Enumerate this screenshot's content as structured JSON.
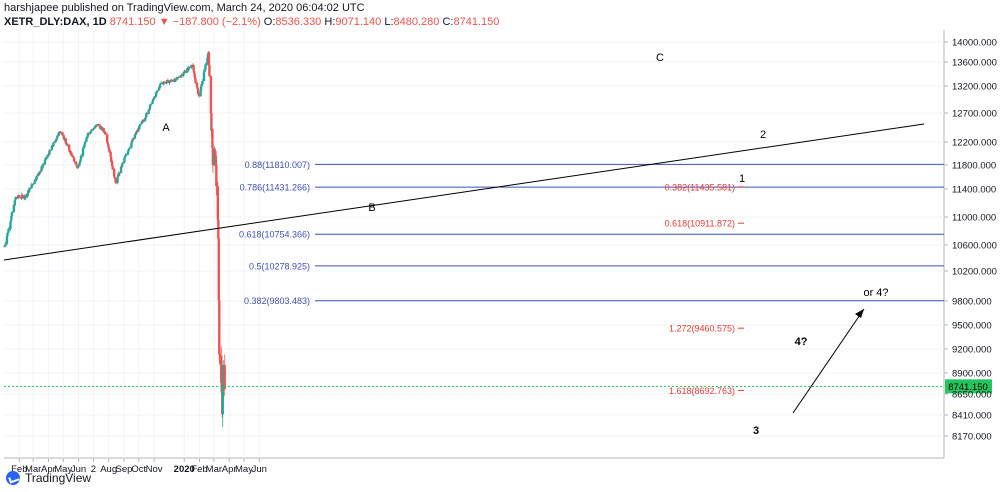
{
  "header": {
    "publisher": "harshjapee published on TradingView.com, March 24, 2020 06:04:02 UTC",
    "symbol": "XETR_DLY:DAX, 1D",
    "last": "8741.150",
    "change": "▼ −187.800 (−2.1%)",
    "open_label": "O:",
    "open": "8536.330",
    "high_label": "H:",
    "high": "9071.140",
    "low_label": "L:",
    "low": "8480.280",
    "close_label": "C:",
    "close": "8741.150"
  },
  "footer": {
    "brand": "TradingView"
  },
  "colors": {
    "up": "#26a69a",
    "down": "#ef5350",
    "fib_left": "#3f51b5",
    "fib_right": "#e53935",
    "trend": "#000000",
    "price_tag": "#22c55e"
  },
  "chart_data": {
    "type": "candlestick",
    "x_ticks": [
      "Feb",
      "Mar",
      "Apr",
      "May",
      "Jun",
      "2",
      "Aug",
      "Sep",
      "Oct",
      "Nov",
      "2020",
      "Feb",
      "Mar",
      "Apr",
      "May",
      "Jun"
    ],
    "y_ticks": [
      14000,
      13600,
      13200,
      12700,
      12200,
      11800,
      11400,
      11000,
      10600,
      10200,
      9800,
      9500,
      9200,
      8900,
      8650,
      8410,
      8170
    ],
    "y_tick_labels": [
      "14000.000",
      "13600.000",
      "13200.000",
      "12700.000",
      "12200.000",
      "11800.000",
      "11400.000",
      "11000.000",
      "10600.000",
      "10200.000",
      "9800.000",
      "9500.000",
      "9200.000",
      "8900.000",
      "8650.000",
      "8410.000",
      "8170.000"
    ],
    "ylim": [
      8000,
      14200
    ],
    "last_price": 8741.15,
    "last_price_label": "8741.150",
    "fib_left": [
      {
        "label": "0.88(11810.007)",
        "value": 11810.007
      },
      {
        "label": "0.786(11431.266)",
        "value": 11431.266
      },
      {
        "label": "0.618(10754.366)",
        "value": 10754.366
      },
      {
        "label": "0.5(10278.925)",
        "value": 10278.925
      },
      {
        "label": "0.382(9803.483)",
        "value": 9803.483
      }
    ],
    "fib_right": [
      {
        "label": "0.382(11435.581)",
        "value": 11435.581
      },
      {
        "label": "0.618(10911.872)",
        "value": 10911.872
      },
      {
        "label": "1.272(9460.575)",
        "value": 9460.575
      },
      {
        "label": "1.618(8692.763)",
        "value": 8692.763
      }
    ],
    "wave_labels": [
      "A",
      "B",
      "C",
      "1",
      "2",
      "3",
      "4?",
      "or 4?"
    ],
    "waypoints": [
      {
        "date": "2019-01-02",
        "price": 10580
      },
      {
        "date": "2019-01-25",
        "price": 11280
      },
      {
        "date": "2019-02-15",
        "price": 11300
      },
      {
        "date": "2019-03-15",
        "price": 11700
      },
      {
        "date": "2019-04-25",
        "price": 12400
      },
      {
        "date": "2019-05-30",
        "price": 11750
      },
      {
        "date": "2019-06-20",
        "price": 12350
      },
      {
        "date": "2019-07-10",
        "price": 12500
      },
      {
        "date": "2019-07-26",
        "price": 12350
      },
      {
        "date": "2019-08-15",
        "price": 11500
      },
      {
        "date": "2019-09-05",
        "price": 11980
      },
      {
        "date": "2019-09-25",
        "price": 12350
      },
      {
        "date": "2019-10-15",
        "price": 12650
      },
      {
        "date": "2019-11-15",
        "price": 13250
      },
      {
        "date": "2019-12-15",
        "price": 13300
      },
      {
        "date": "2020-01-17",
        "price": 13550
      },
      {
        "date": "2020-01-31",
        "price": 13000
      },
      {
        "date": "2020-02-19",
        "price": 13780
      },
      {
        "date": "2020-02-28",
        "price": 11900
      },
      {
        "date": "2020-03-03",
        "price": 12100
      },
      {
        "date": "2020-03-06",
        "price": 11550
      },
      {
        "date": "2020-03-10",
        "price": 10600
      },
      {
        "date": "2020-03-12",
        "price": 9200
      },
      {
        "date": "2020-03-16",
        "price": 8740
      },
      {
        "date": "2020-03-18",
        "price": 8450
      },
      {
        "date": "2020-03-20",
        "price": 8930
      },
      {
        "date": "2020-03-23",
        "price": 8741
      }
    ]
  }
}
